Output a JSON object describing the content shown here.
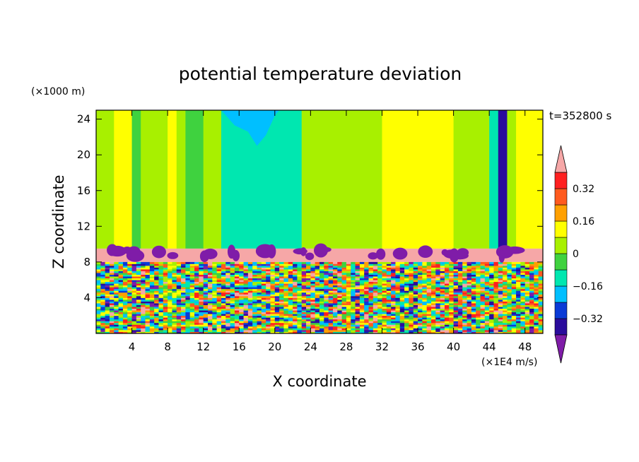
{
  "chart_data": {
    "type": "heatmap",
    "title": "potential temperature deviation",
    "xlabel": "X coordinate",
    "ylabel": "Z coordinate",
    "x_unit": "(×1E4 m/s)",
    "y_unit": "(×1000 m)",
    "time_label": "t=352800 s",
    "xlim": [
      0,
      50
    ],
    "ylim": [
      0,
      25
    ],
    "x_ticks": [
      4,
      8,
      12,
      16,
      20,
      24,
      28,
      32,
      36,
      40,
      44,
      48
    ],
    "y_ticks": [
      4,
      8,
      12,
      16,
      20,
      24
    ],
    "colorbar": {
      "levels": [
        -0.4,
        -0.32,
        -0.24,
        -0.16,
        -0.08,
        0,
        0.08,
        0.16,
        0.24,
        0.32,
        0.4
      ],
      "tick_labels": [
        "0.32",
        "0.16",
        "0",
        "−0.16",
        "−0.32"
      ],
      "tick_values": [
        0.32,
        0.16,
        0,
        -0.16,
        -0.32
      ],
      "colors": [
        "#7f1ca8",
        "#2a0c9c",
        "#0a3ad6",
        "#00bfff",
        "#00e7b0",
        "#3fd23f",
        "#a8f000",
        "#ffff00",
        "#ffa000",
        "#ff5a1e",
        "#ff2020",
        "#f6a7a7"
      ]
    },
    "field": {
      "upper_columns": [
        {
          "x0": 0,
          "x1": 2,
          "value": 0.02
        },
        {
          "x0": 2,
          "x1": 4,
          "value": 0.09
        },
        {
          "x0": 4,
          "x1": 5,
          "value": -0.02
        },
        {
          "x0": 5,
          "x1": 7,
          "value": 0.06
        },
        {
          "x0": 7,
          "x1": 8,
          "value": 0.02
        },
        {
          "x0": 8,
          "x1": 9,
          "value": 0.1
        },
        {
          "x0": 9,
          "x1": 10,
          "value": 0.04
        },
        {
          "x0": 10,
          "x1": 12,
          "value": -0.02
        },
        {
          "x0": 12,
          "x1": 14,
          "value": 0.06
        },
        {
          "x0": 14,
          "x1": 23,
          "value": -0.1
        },
        {
          "x0": 23,
          "x1": 24,
          "value": 0.02
        },
        {
          "x0": 24,
          "x1": 30,
          "value": 0.06
        },
        {
          "x0": 30,
          "x1": 32,
          "value": 0.02
        },
        {
          "x0": 32,
          "x1": 38,
          "value": 0.13
        },
        {
          "x0": 38,
          "x1": 40,
          "value": 0.1
        },
        {
          "x0": 40,
          "x1": 42,
          "value": 0.03
        },
        {
          "x0": 42,
          "x1": 44,
          "value": 0.06
        },
        {
          "x0": 44,
          "x1": 45,
          "value": -0.1
        },
        {
          "x0": 45,
          "x1": 46,
          "value": -0.34
        },
        {
          "x0": 46,
          "x1": 47,
          "value": 0.03
        },
        {
          "x0": 47,
          "x1": 48,
          "value": 0.1
        },
        {
          "x0": 48,
          "x1": 50,
          "value": 0.14
        }
      ],
      "cold_cap": [
        {
          "x": 14,
          "z_bottom": 25,
          "value": -0.2
        },
        {
          "x": 15.5,
          "z_bottom": 23.3,
          "value": -0.2
        },
        {
          "x": 17,
          "z_bottom": 22.6,
          "value": -0.2
        },
        {
          "x": 18,
          "z_bottom": 21,
          "value": -0.2
        },
        {
          "x": 19,
          "z_bottom": 22.2,
          "value": -0.2
        },
        {
          "x": 20,
          "z_bottom": 24.4,
          "value": -0.2
        },
        {
          "x": 20.5,
          "z_bottom": 25,
          "value": -0.2
        }
      ],
      "stable_layer": {
        "z_bottom": 8.0,
        "z_top": 9.5,
        "value": 0.42
      },
      "turbulent_layer": {
        "z_bottom": 0,
        "z_top": 8.0,
        "value_range": [
          -0.42,
          0.42
        ]
      }
    }
  }
}
